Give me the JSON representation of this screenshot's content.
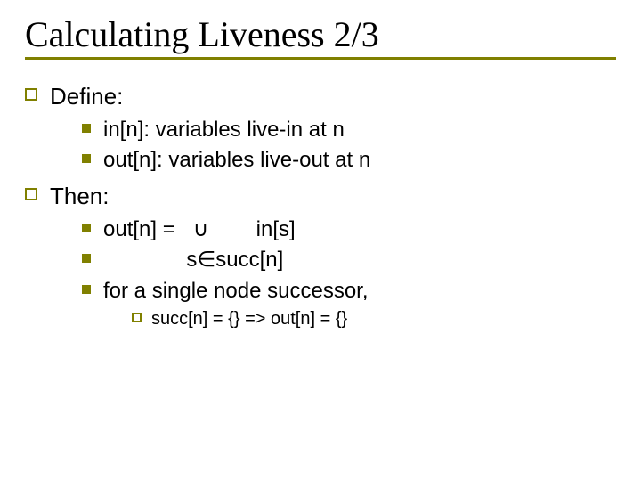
{
  "colors": {
    "accent": "#808000",
    "text": "#000000",
    "background": "#ffffff"
  },
  "typography": {
    "title_font": "Times New Roman",
    "title_size_pt": 40,
    "body_font": "Verdana",
    "body_size_pt": 26,
    "sub_size_pt": 24,
    "subsub_size_pt": 20
  },
  "title": "Calculating Liveness 2/3",
  "sections": [
    {
      "label": "Define:",
      "items": [
        "in[n]: variables live-in at n",
        "out[n]: variables live-out at n"
      ]
    },
    {
      "label": "Then:",
      "items": [
        "out[n] =   ∪        in[s]",
        "              s∈succ[n]",
        "for a single node successor,"
      ],
      "subitems": [
        "succ[n] = {} => out[n] = {}"
      ]
    }
  ]
}
